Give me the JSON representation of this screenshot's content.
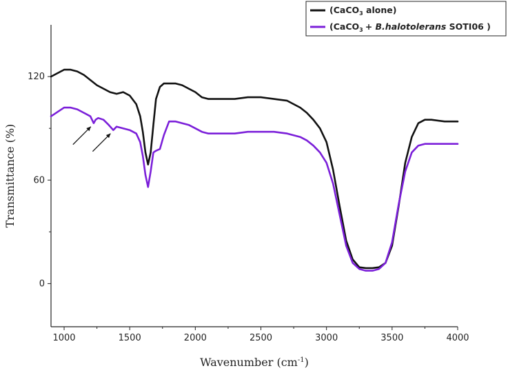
{
  "chart_data": {
    "type": "line",
    "xlabel": "Wavenumber (cm",
    "xlabel_sup": "-1",
    "xlabel_close": ")",
    "ylabel": "Transmittance (%)",
    "xlim": [
      900,
      4000
    ],
    "ylim": [
      -25,
      150
    ],
    "x_ticks": [
      1000,
      1500,
      2000,
      2500,
      3000,
      3500,
      4000
    ],
    "y_ticks": [
      0,
      60,
      120
    ],
    "grid": false,
    "legend_position": "top-right",
    "legend": {
      "entry1": {
        "open": "(CaCO",
        "sub": "3",
        "rest": " alone)"
      },
      "entry2": {
        "open": "(CaCO",
        "sub": "3",
        "plus": "+ ",
        "species": "B.halotolerans",
        "strain": " SOTI06 )"
      }
    },
    "annotations": [
      {
        "type": "arrow",
        "target": [
          1225,
          93
        ]
      },
      {
        "type": "arrow",
        "target": [
          1375,
          89
        ]
      }
    ],
    "series": [
      {
        "color": "#111111",
        "x": [
          900,
          1000,
          1050,
          1100,
          1150,
          1200,
          1250,
          1300,
          1350,
          1400,
          1450,
          1500,
          1550,
          1580,
          1600,
          1620,
          1640,
          1660,
          1680,
          1700,
          1730,
          1760,
          1800,
          1850,
          1900,
          1950,
          2000,
          2050,
          2100,
          2200,
          2300,
          2400,
          2500,
          2600,
          2700,
          2750,
          2800,
          2850,
          2900,
          2950,
          3000,
          3050,
          3100,
          3150,
          3200,
          3250,
          3300,
          3350,
          3400,
          3450,
          3500,
          3550,
          3600,
          3650,
          3700,
          3750,
          3800,
          3900,
          4000
        ],
        "y": [
          120,
          124,
          124,
          123,
          121,
          118,
          115,
          113,
          111,
          110,
          111,
          109,
          104,
          97,
          88,
          76,
          69,
          76,
          92,
          107,
          114,
          116,
          116,
          116,
          115,
          113,
          111,
          108,
          107,
          107,
          107,
          108,
          108,
          107,
          106,
          104,
          102,
          99,
          95,
          90,
          82,
          66,
          45,
          25,
          14,
          9.5,
          9,
          9,
          9.5,
          12,
          22,
          45,
          70,
          85,
          93,
          95,
          95,
          94,
          94
        ]
      },
      {
        "color": "#7B1FD9",
        "x": [
          900,
          1000,
          1050,
          1100,
          1150,
          1200,
          1225,
          1240,
          1260,
          1300,
          1340,
          1375,
          1400,
          1450,
          1500,
          1550,
          1580,
          1600,
          1620,
          1640,
          1660,
          1680,
          1700,
          1730,
          1760,
          1800,
          1850,
          1900,
          1950,
          2000,
          2050,
          2100,
          2200,
          2300,
          2400,
          2500,
          2600,
          2700,
          2750,
          2800,
          2850,
          2900,
          2950,
          3000,
          3050,
          3100,
          3150,
          3200,
          3250,
          3300,
          3350,
          3400,
          3450,
          3500,
          3550,
          3600,
          3650,
          3700,
          3750,
          3800,
          3900,
          4000
        ],
        "y": [
          97,
          102,
          102,
          101,
          99,
          97,
          93,
          95,
          96,
          95,
          92,
          89,
          91,
          90,
          89,
          87,
          82,
          74,
          63,
          56,
          65,
          76,
          77,
          78,
          86,
          94,
          94,
          93,
          92,
          90,
          88,
          87,
          87,
          87,
          88,
          88,
          88,
          87,
          86,
          85,
          83,
          80,
          76,
          70,
          58,
          40,
          22,
          12,
          8.5,
          7.5,
          7.5,
          8.5,
          12,
          24,
          46,
          65,
          76,
          80,
          81,
          81,
          81,
          81
        ]
      }
    ]
  }
}
